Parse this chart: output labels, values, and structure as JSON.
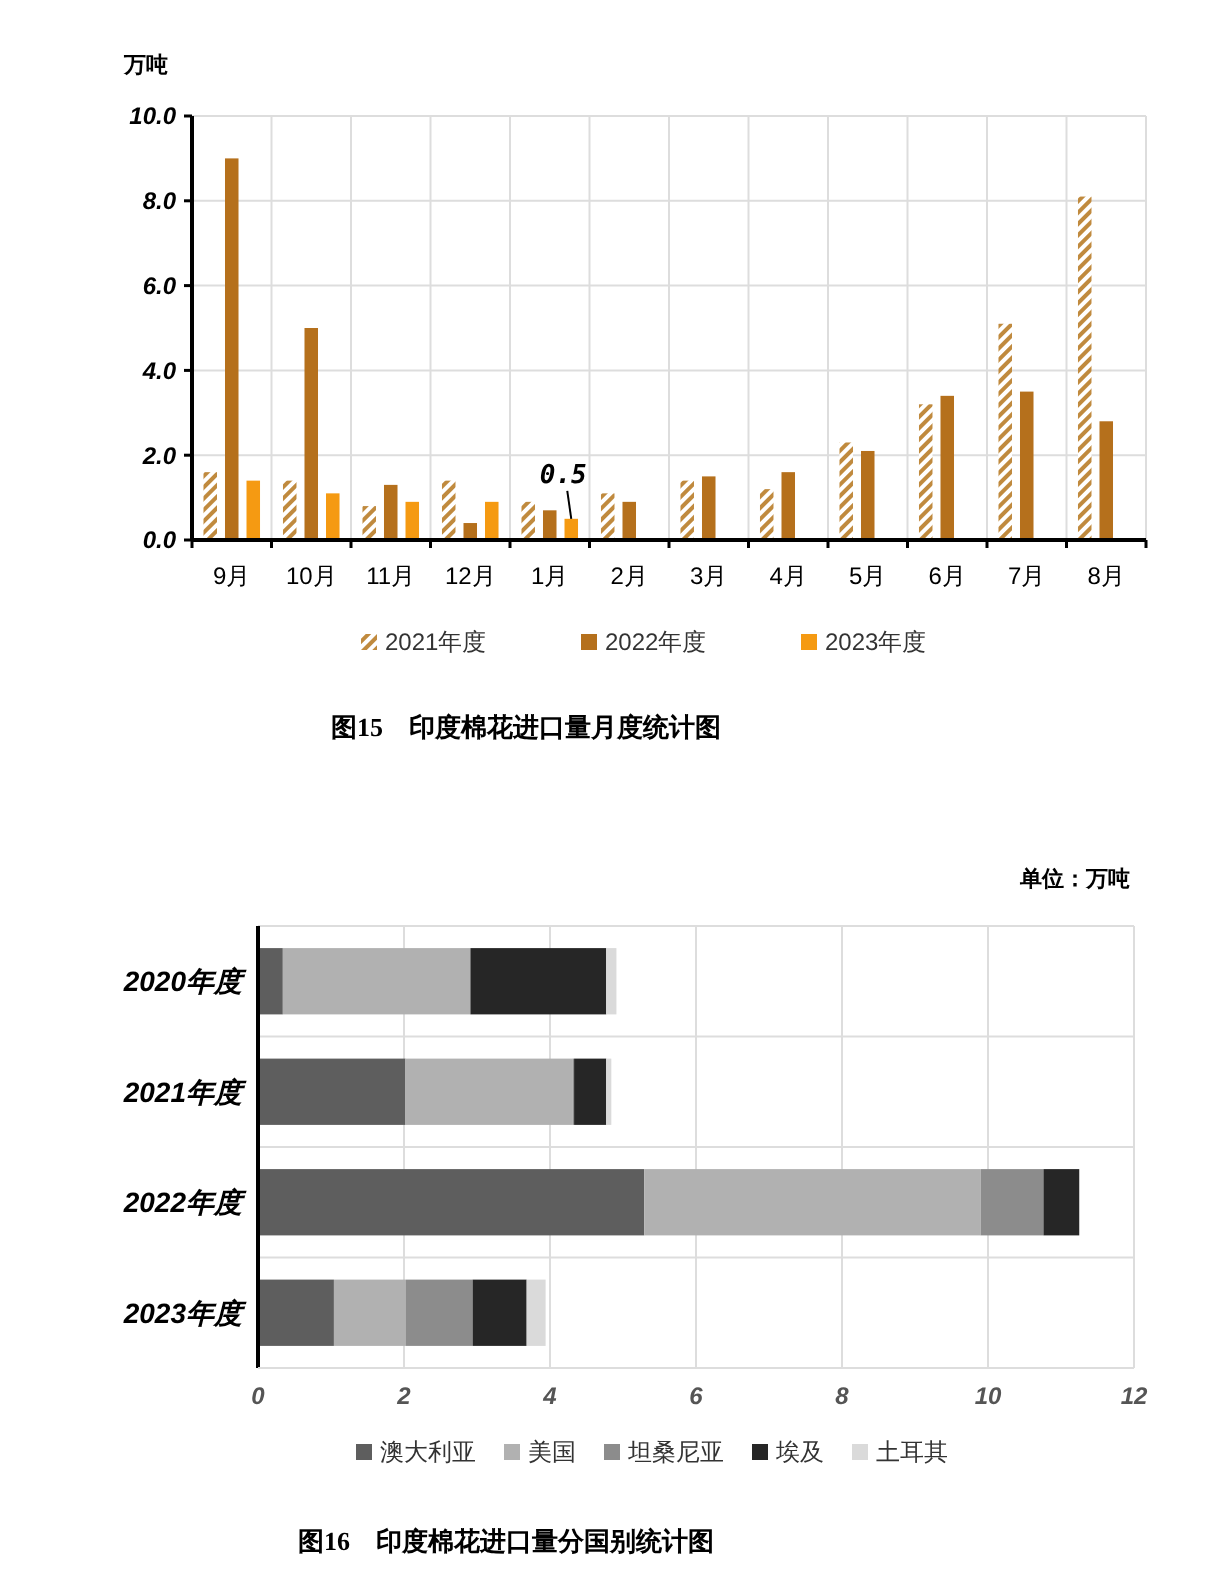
{
  "chart_data": [
    {
      "type": "bar",
      "title": "图15　印度棉花进口量月度统计图",
      "ylabel": "万吨",
      "categories": [
        "9月",
        "10月",
        "11月",
        "12月",
        "1月",
        "2月",
        "3月",
        "4月",
        "5月",
        "6月",
        "7月",
        "8月"
      ],
      "series": [
        {
          "name": "2021年度",
          "color": "#c08a3e",
          "values": [
            1.6,
            1.4,
            0.8,
            1.4,
            0.9,
            1.1,
            1.4,
            1.2,
            2.3,
            3.2,
            5.1,
            8.1
          ]
        },
        {
          "name": "2022年度",
          "color": "#b5701c",
          "values": [
            9.0,
            5.0,
            1.3,
            0.4,
            0.7,
            0.9,
            1.5,
            1.6,
            2.1,
            3.4,
            3.5,
            2.8
          ]
        },
        {
          "name": "2023年度",
          "color": "#f59a12",
          "values": [
            1.4,
            1.1,
            0.9,
            0.9,
            0.5,
            null,
            null,
            null,
            null,
            null,
            null,
            null
          ]
        }
      ],
      "ylim": [
        0,
        10
      ],
      "yticks": [
        {
          "value": 0,
          "label": "0.0"
        },
        {
          "value": 2,
          "label": "2.0"
        },
        {
          "value": 4,
          "label": "4.0"
        },
        {
          "value": 6,
          "label": "6.0"
        },
        {
          "value": 8,
          "label": "8.0"
        },
        {
          "value": 10,
          "label": "10.0"
        }
      ],
      "grid": true,
      "legend": "bottom",
      "annotations": [
        {
          "text": "0.5",
          "x": "1月",
          "y": 0.5
        }
      ]
    },
    {
      "type": "bar",
      "orientation": "horizontal",
      "stacked": true,
      "title": "图16　印度棉花进口量分国别统计图",
      "annotations": [
        "单位：万吨"
      ],
      "categories": [
        "2020年度",
        "2021年度",
        "2022年度",
        "2023年度"
      ],
      "series": [
        {
          "name": "澳大利亚",
          "color": "#5e5e5e",
          "values": [
            0.34,
            2.02,
            5.29,
            1.04
          ]
        },
        {
          "name": "美国",
          "color": "#b1b1b1",
          "values": [
            2.57,
            2.29,
            4.61,
            0.98
          ]
        },
        {
          "name": "坦桑尼亚",
          "color": "#8c8c8c",
          "values": [
            0,
            0.02,
            0.86,
            0.92
          ]
        },
        {
          "name": "埃及",
          "color": "#262626",
          "values": [
            1.86,
            0.44,
            0.49,
            0.74
          ]
        },
        {
          "name": "土耳其",
          "color": "#dadada",
          "values": [
            0.14,
            0.07,
            0,
            0.26
          ]
        }
      ],
      "xlim": [
        0,
        12
      ],
      "xticks": [
        0,
        2,
        4,
        6,
        8,
        10,
        12
      ],
      "grid": true,
      "legend": "bottom"
    }
  ]
}
